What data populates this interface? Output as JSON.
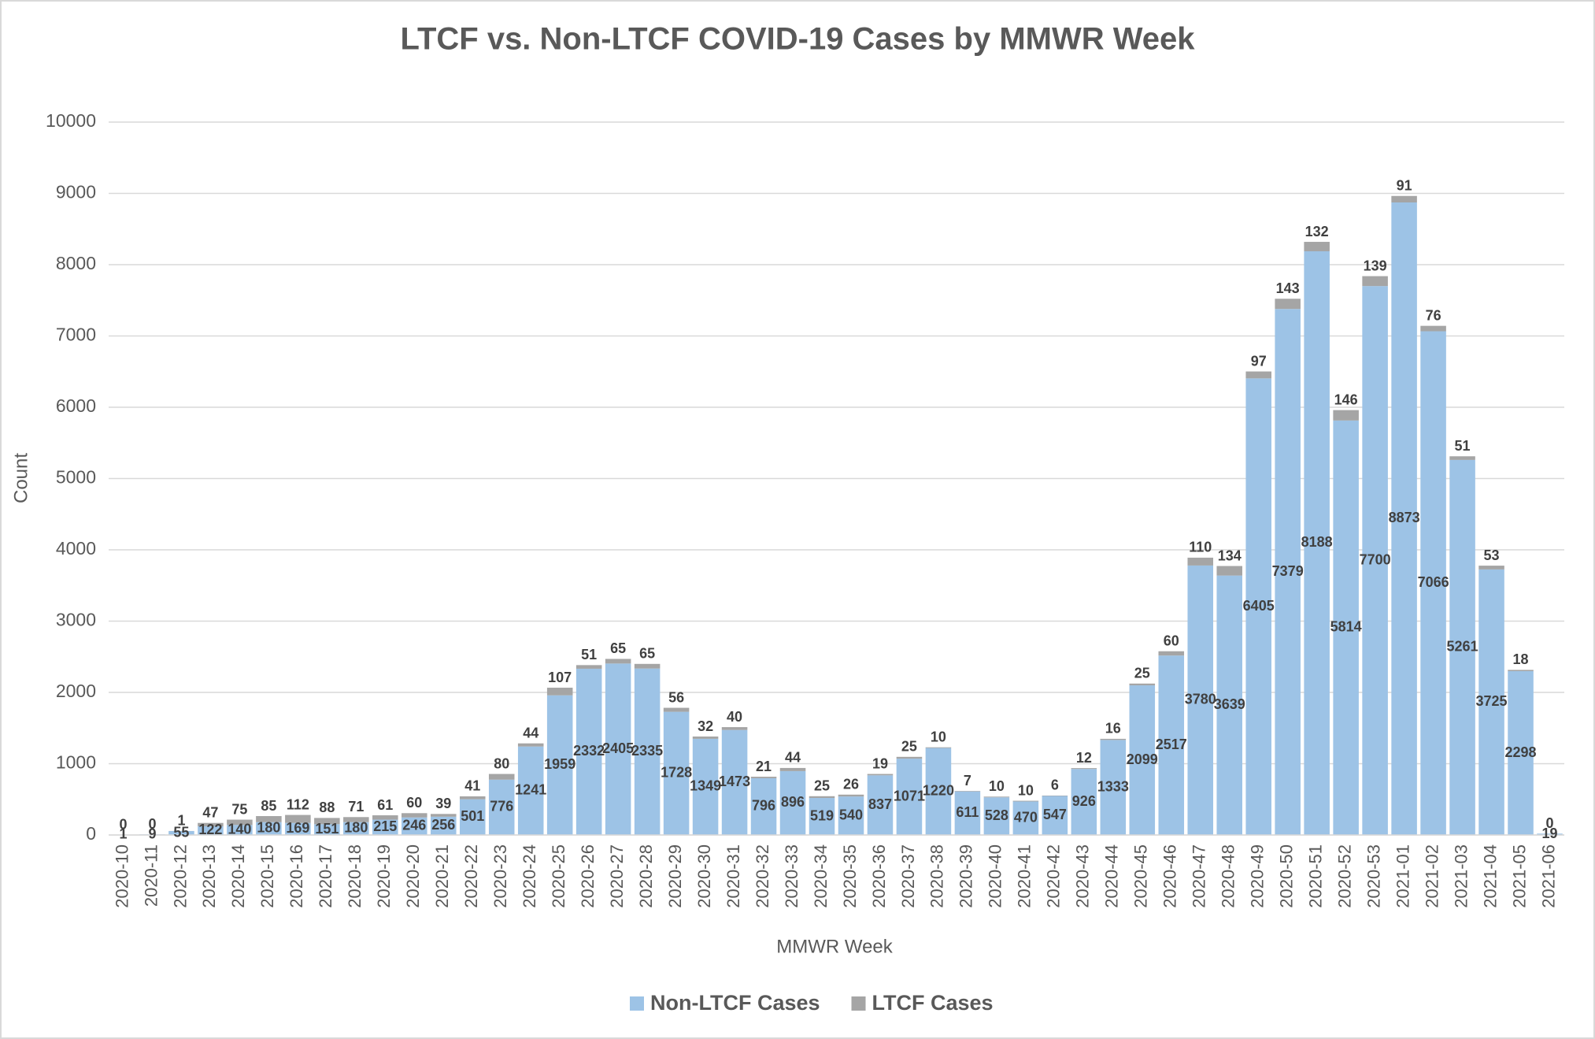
{
  "chart_data": {
    "type": "stacked_bar",
    "title": "LTCF vs. Non-LTCF COVID-19 Cases by MMWR Week",
    "x_label": "MMWR Week",
    "y_label": "Count",
    "categories": [
      "2020-10",
      "2020-11",
      "2020-12",
      "2020-13",
      "2020-14",
      "2020-15",
      "2020-16",
      "2020-17",
      "2020-18",
      "2020-19",
      "2020-20",
      "2020-21",
      "2020-22",
      "2020-23",
      "2020-24",
      "2020-25",
      "2020-26",
      "2020-27",
      "2020-28",
      "2020-29",
      "2020-30",
      "2020-31",
      "2020-32",
      "2020-33",
      "2020-34",
      "2020-35",
      "2020-36",
      "2020-37",
      "2020-38",
      "2020-39",
      "2020-40",
      "2020-41",
      "2020-42",
      "2020-43",
      "2020-44",
      "2020-45",
      "2020-46",
      "2020-47",
      "2020-48",
      "2020-49",
      "2020-50",
      "2020-51",
      "2020-52",
      "2020-53",
      "2021-01",
      "2021-02",
      "2021-03",
      "2021-04",
      "2021-05",
      "2021-06"
    ],
    "series": [
      {
        "name": "Non-LTCF Cases",
        "color": "#9dc3e6",
        "label_position": "center",
        "values": [
          1,
          9,
          55,
          122,
          140,
          180,
          169,
          151,
          180,
          215,
          246,
          256,
          501,
          776,
          1241,
          1959,
          2332,
          2405,
          2335,
          1728,
          1349,
          1473,
          796,
          896,
          519,
          540,
          837,
          1071,
          1220,
          611,
          528,
          470,
          547,
          926,
          1333,
          2099,
          2517,
          3780,
          3639,
          6405,
          7379,
          8188,
          5814,
          7700,
          8873,
          7066,
          5261,
          3725,
          2298,
          19
        ]
      },
      {
        "name": "LTCF Cases",
        "color": "#a5a5a5",
        "label_position": "above",
        "values": [
          0,
          0,
          1,
          47,
          75,
          85,
          112,
          88,
          71,
          61,
          60,
          39,
          41,
          80,
          44,
          107,
          51,
          65,
          65,
          56,
          32,
          40,
          21,
          44,
          25,
          26,
          19,
          25,
          10,
          7,
          10,
          10,
          6,
          12,
          16,
          25,
          60,
          110,
          134,
          97,
          143,
          132,
          146,
          139,
          91,
          76,
          51,
          53,
          18,
          0
        ]
      }
    ],
    "ylim": [
      0,
      10000
    ],
    "yticks": [
      0,
      1000,
      2000,
      3000,
      4000,
      5000,
      6000,
      7000,
      8000,
      9000,
      10000
    ],
    "grid": true,
    "legend": "bottom"
  }
}
